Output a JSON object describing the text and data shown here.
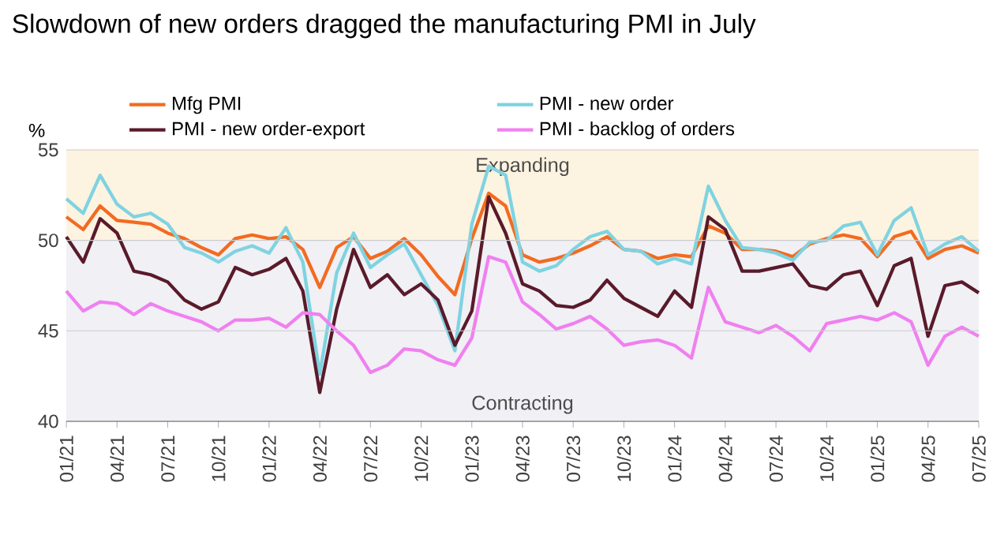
{
  "chart_data": {
    "type": "line",
    "title": "Slowdown of new orders dragged the manufacturing PMI in July",
    "ylabel": "%",
    "categories": [
      "01/21",
      null,
      null,
      "04/21",
      null,
      null,
      "07/21",
      null,
      null,
      "10/21",
      null,
      null,
      "01/22",
      null,
      null,
      "04/22",
      null,
      null,
      "07/22",
      null,
      null,
      "10/22",
      null,
      null,
      "01/23",
      null,
      null,
      "04/23",
      null,
      null,
      "07/23",
      null,
      null,
      "10/23",
      null,
      null,
      "01/24",
      null,
      null,
      "04/24",
      null,
      null,
      "07/24",
      null,
      null,
      "10/24",
      null,
      null,
      "01/25",
      null,
      null,
      "04/25",
      null,
      null,
      "07/25"
    ],
    "series": [
      {
        "name": "Mfg PMI",
        "color": "#f26b21",
        "values": [
          51.3,
          50.6,
          51.9,
          51.1,
          51.0,
          50.9,
          50.4,
          50.1,
          49.6,
          49.2,
          50.1,
          50.3,
          50.1,
          50.2,
          49.5,
          47.4,
          49.6,
          50.2,
          49.0,
          49.4,
          50.1,
          49.2,
          48.0,
          47.0,
          50.1,
          52.6,
          51.9,
          49.2,
          48.8,
          49.0,
          49.3,
          49.7,
          50.2,
          49.5,
          49.4,
          49.0,
          49.2,
          49.1,
          50.8,
          50.4,
          49.5,
          49.5,
          49.4,
          49.1,
          49.8,
          50.1,
          50.3,
          50.1,
          49.1,
          50.2,
          50.5,
          49.0,
          49.5,
          49.7,
          49.3
        ]
      },
      {
        "name": "PMI - new order",
        "color": "#7fd3e0",
        "values": [
          52.3,
          51.5,
          53.6,
          52.0,
          51.3,
          51.5,
          50.9,
          49.6,
          49.3,
          48.8,
          49.4,
          49.7,
          49.3,
          50.7,
          48.8,
          42.6,
          48.2,
          50.4,
          48.5,
          49.2,
          49.8,
          48.1,
          46.4,
          43.9,
          50.9,
          54.1,
          53.6,
          48.8,
          48.3,
          48.6,
          49.5,
          50.2,
          50.5,
          49.5,
          49.4,
          48.7,
          49.0,
          48.7,
          53.0,
          51.1,
          49.6,
          49.5,
          49.3,
          48.9,
          49.9,
          50.0,
          50.8,
          51.0,
          49.2,
          51.1,
          51.8,
          49.2,
          49.8,
          50.2,
          49.4
        ]
      },
      {
        "name": "PMI - new order-export",
        "color": "#5a1a2a",
        "values": [
          50.2,
          48.8,
          51.2,
          50.4,
          48.3,
          48.1,
          47.7,
          46.7,
          46.2,
          46.6,
          48.5,
          48.1,
          48.4,
          49.0,
          47.2,
          41.6,
          46.2,
          49.5,
          47.4,
          48.1,
          47.0,
          47.6,
          46.7,
          44.2,
          46.1,
          52.4,
          50.4,
          47.6,
          47.2,
          46.4,
          46.3,
          46.7,
          47.8,
          46.8,
          46.3,
          45.8,
          47.2,
          46.3,
          51.3,
          50.6,
          48.3,
          48.3,
          48.5,
          48.7,
          47.5,
          47.3,
          48.1,
          48.3,
          46.4,
          48.6,
          49.0,
          44.7,
          47.5,
          47.7,
          47.1
        ]
      },
      {
        "name": "PMI - backlog of orders",
        "color": "#f080f0",
        "values": [
          47.2,
          46.1,
          46.6,
          46.5,
          45.9,
          46.5,
          46.1,
          45.8,
          45.5,
          45.0,
          45.6,
          45.6,
          45.7,
          45.2,
          46.0,
          45.9,
          45.0,
          44.2,
          42.7,
          43.1,
          44.0,
          43.9,
          43.4,
          43.1,
          44.6,
          49.1,
          48.8,
          46.6,
          45.9,
          45.1,
          45.4,
          45.8,
          45.1,
          44.2,
          44.4,
          44.5,
          44.2,
          43.5,
          47.4,
          45.5,
          45.2,
          44.9,
          45.3,
          44.7,
          43.9,
          45.4,
          45.6,
          45.8,
          45.6,
          46.0,
          45.5,
          43.1,
          44.7,
          45.2,
          44.7
        ]
      }
    ],
    "ylim": [
      40,
      55
    ],
    "yticks": [
      40,
      45,
      50,
      55
    ],
    "grid": "y",
    "legend": "top",
    "marker": "none",
    "line_style": "solid",
    "bands": [
      {
        "axis": "y",
        "from": 50,
        "to": 55,
        "label": "Expanding",
        "color": "#fdf3e1"
      },
      {
        "axis": "y",
        "from": 40,
        "to": 50,
        "label": "Contracting",
        "color": "#f0f0f5"
      }
    ]
  }
}
